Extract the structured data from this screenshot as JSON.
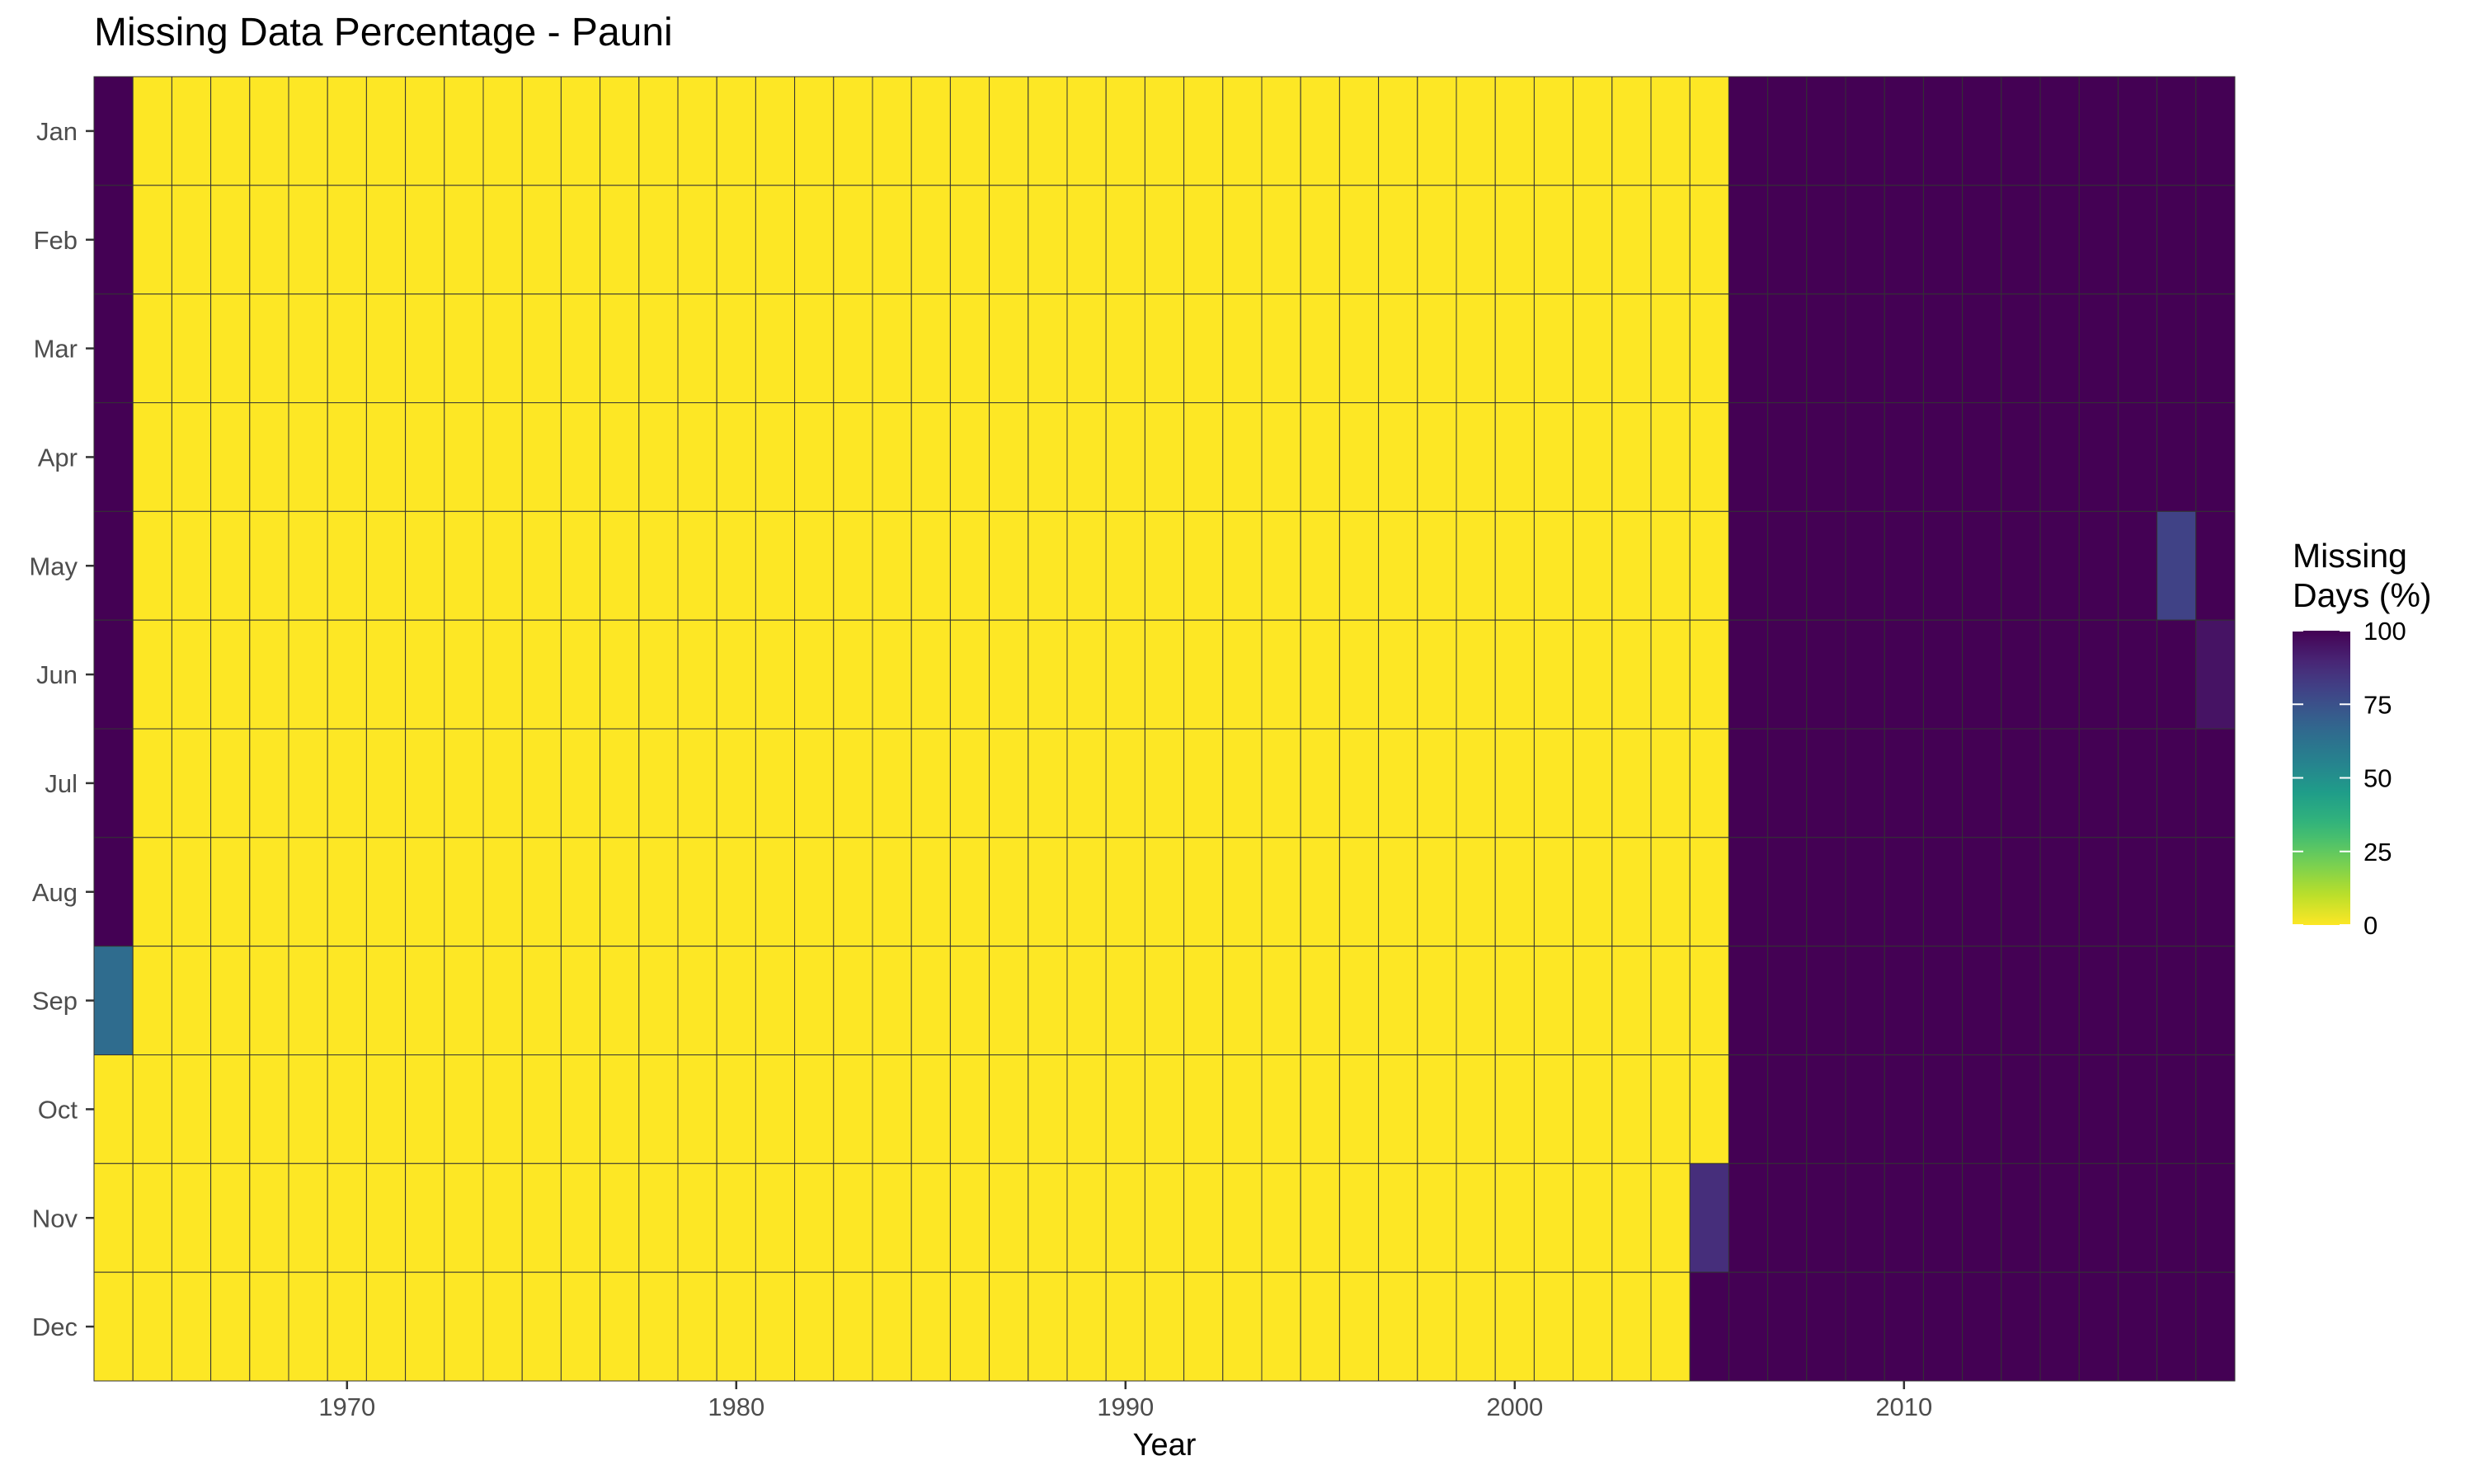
{
  "chart_data": {
    "type": "heatmap",
    "title": "Missing Data Percentage - Pauni",
    "xlabel": "Year",
    "ylabel": "",
    "x_ticks": [
      1970,
      1980,
      1990,
      2000,
      2010
    ],
    "months": [
      "Jan",
      "Feb",
      "Mar",
      "Apr",
      "May",
      "Jun",
      "Jul",
      "Aug",
      "Sep",
      "Oct",
      "Nov",
      "Dec"
    ],
    "year_range": [
      1964,
      2018
    ],
    "value_range": [
      0,
      100
    ],
    "colorscale": "viridis (reversed: 0 = yellow, 100 = dark purple)",
    "legend": {
      "title_lines": [
        "Missing",
        "Days (%)"
      ],
      "ticks": [
        0,
        25,
        50,
        75,
        100
      ],
      "position": "right"
    },
    "rules": [
      {
        "years": [
          1965,
          2005
        ],
        "months": "all",
        "value": 0
      },
      {
        "years": [
          1964,
          1964
        ],
        "months": [
          "Jan",
          "Feb",
          "Mar",
          "Apr",
          "May",
          "Jun",
          "Jul",
          "Aug"
        ],
        "value": 100
      },
      {
        "years": [
          1964,
          1964
        ],
        "months": [
          "Sep"
        ],
        "value": 65
      },
      {
        "years": [
          1964,
          1964
        ],
        "months": [
          "Oct",
          "Nov",
          "Dec"
        ],
        "value": 0
      },
      {
        "years": [
          2005,
          2005
        ],
        "months": [
          "Nov"
        ],
        "value": 87
      },
      {
        "years": [
          2005,
          2005
        ],
        "months": [
          "Dec"
        ],
        "value": 100
      },
      {
        "years": [
          2006,
          2018
        ],
        "months": "all",
        "value": 100
      },
      {
        "years": [
          2017,
          2017
        ],
        "months": [
          "May"
        ],
        "value": 80
      },
      {
        "years": [
          2018,
          2018
        ],
        "months": [
          "Jun"
        ],
        "value": 95
      }
    ]
  }
}
